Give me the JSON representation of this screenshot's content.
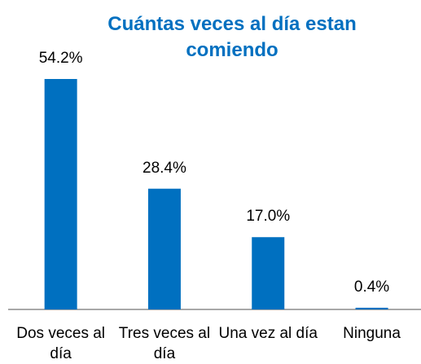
{
  "chart_data": {
    "type": "bar",
    "title": "Cuántas veces al día estan comiendo",
    "categories": [
      "Dos veces al día",
      "Tres veces al día",
      "Una vez al día",
      "Ninguna"
    ],
    "values": [
      54.2,
      28.4,
      17.0,
      0.4
    ],
    "value_labels": [
      "54.2%",
      "28.4%",
      "17.0%",
      "0.4%"
    ],
    "color": "#0070c0"
  }
}
